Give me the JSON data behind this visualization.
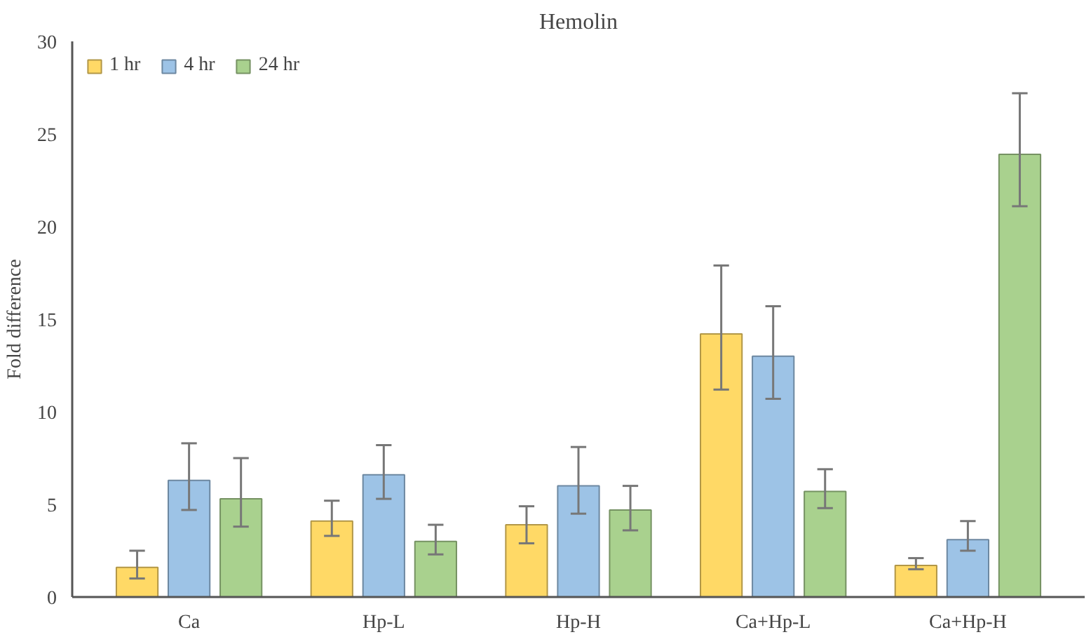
{
  "chart_data": {
    "type": "bar",
    "title": "Hemolin",
    "ylabel": "Fold difference",
    "categories": [
      "Ca",
      "Hp-L",
      "Hp-H",
      "Ca+Hp-L",
      "Ca+Hp-H"
    ],
    "series": [
      {
        "name": "1 hr",
        "color": "#ffd966",
        "values": [
          1.6,
          4.1,
          3.9,
          14.2,
          1.7
        ],
        "errors": [
          [
            1.0,
            2.5
          ],
          [
            3.3,
            5.2
          ],
          [
            2.9,
            4.9
          ],
          [
            11.2,
            17.9
          ],
          [
            1.5,
            2.1
          ]
        ]
      },
      {
        "name": "4 hr",
        "color": "#9dc3e6",
        "values": [
          6.3,
          6.6,
          6.0,
          13.0,
          3.1
        ],
        "errors": [
          [
            4.7,
            8.3
          ],
          [
            5.3,
            8.2
          ],
          [
            4.5,
            8.1
          ],
          [
            10.7,
            15.7
          ],
          [
            2.5,
            4.1
          ]
        ]
      },
      {
        "name": "24 hr",
        "color": "#a9d18e",
        "values": [
          5.3,
          3.0,
          4.7,
          5.7,
          23.9
        ],
        "errors": [
          [
            3.8,
            7.5
          ],
          [
            2.3,
            3.9
          ],
          [
            3.6,
            6.0
          ],
          [
            4.8,
            6.9
          ],
          [
            21.1,
            27.2
          ]
        ]
      }
    ],
    "ylim": [
      0,
      30
    ],
    "yticks": [
      0,
      5,
      10,
      15,
      20,
      25,
      30
    ],
    "grid": false,
    "legend": "top left"
  }
}
